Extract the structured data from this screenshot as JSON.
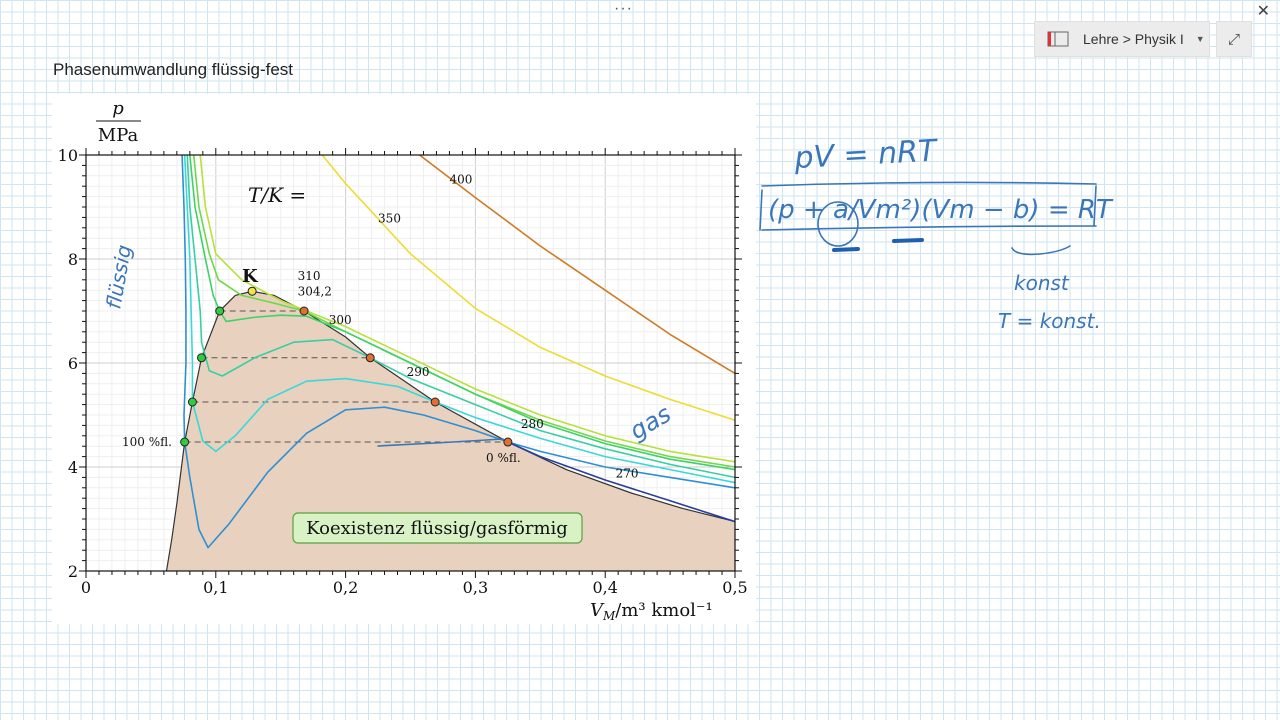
{
  "window": {
    "more_glyph": "···",
    "close_glyph": "✕"
  },
  "toolbar": {
    "breadcrumb": "Lehre > Physik I",
    "notebook_icon": "notebook-icon",
    "caret_glyph": "▼",
    "expand_glyph": "⤢"
  },
  "page": {
    "title": "Phasenumwandlung flüssig-fest"
  },
  "handwriting": {
    "ideal_gas": "pV = nRT",
    "van_der_waals": "(p + a/Vm²)(Vm − b) = RT",
    "liquid_label": "flüssig",
    "gas_label": "gas",
    "konst": "konst",
    "t_konst": "T = konst."
  },
  "chart_data": {
    "type": "line",
    "ylabel_num": "p",
    "ylabel_den": "MPa",
    "xlabel": "V",
    "xlabel_sub": "M",
    "xlabel_unit": "/m³ kmol⁻¹",
    "xlim": [
      0,
      0.5
    ],
    "ylim": [
      2,
      10
    ],
    "xticks": [
      "0",
      "0,1",
      "0,2",
      "0,3",
      "0,4",
      "0,5"
    ],
    "yticks": [
      "2",
      "4",
      "6",
      "8",
      "10"
    ],
    "legend_title": "T/K =",
    "critical_label": "K",
    "left_label": "100 %fl.",
    "right_label": "0 %fl.",
    "region_label": "Koexistenz flüssig/gasförmig",
    "colors": {
      "region": "#e8d2bf",
      "region_edge": "#333333",
      "box_fill": "#d8f2c6",
      "box_edge": "#5aa042",
      "liquid_pt": "#2ecc40",
      "gas_pt": "#e07030",
      "critical_pt": "#f3e347"
    },
    "critical_point": {
      "x": 0.128,
      "y": 7.38
    },
    "series": [
      {
        "name": "400",
        "color": "#d07a22",
        "points": [
          [
            0.257,
            10.0
          ],
          [
            0.3,
            9.18
          ],
          [
            0.35,
            8.25
          ],
          [
            0.4,
            7.4
          ],
          [
            0.45,
            6.55
          ],
          [
            0.5,
            5.8
          ]
        ]
      },
      {
        "name": "350",
        "color": "#eedc33",
        "points": [
          [
            0.182,
            10.0
          ],
          [
            0.2,
            9.45
          ],
          [
            0.25,
            8.1
          ],
          [
            0.3,
            7.05
          ],
          [
            0.35,
            6.3
          ],
          [
            0.4,
            5.75
          ],
          [
            0.45,
            5.3
          ],
          [
            0.5,
            4.9
          ]
        ]
      },
      {
        "name": "310",
        "color": "#b7e13a",
        "points": [
          [
            0.088,
            10.0
          ],
          [
            0.092,
            9.0
          ],
          [
            0.1,
            8.1
          ],
          [
            0.12,
            7.6
          ],
          [
            0.15,
            7.2
          ],
          [
            0.2,
            6.7
          ],
          [
            0.25,
            6.1
          ],
          [
            0.3,
            5.5
          ],
          [
            0.35,
            5.0
          ],
          [
            0.4,
            4.6
          ],
          [
            0.45,
            4.3
          ],
          [
            0.5,
            4.1
          ]
        ]
      },
      {
        "name": "304,2",
        "color": "#6fd84a",
        "points": [
          [
            0.083,
            10.0
          ],
          [
            0.087,
            9.0
          ],
          [
            0.095,
            8.1
          ],
          [
            0.102,
            7.6
          ],
          [
            0.12,
            7.3
          ],
          [
            0.145,
            7.15
          ],
          [
            0.168,
            7.0
          ],
          [
            0.2,
            6.6
          ],
          [
            0.25,
            6.0
          ],
          [
            0.3,
            5.4
          ],
          [
            0.35,
            4.9
          ],
          [
            0.4,
            4.5
          ],
          [
            0.45,
            4.2
          ],
          [
            0.5,
            4.0
          ]
        ]
      },
      {
        "name": "300",
        "color": "#3ed266",
        "points": [
          [
            0.08,
            10.0
          ],
          [
            0.084,
            9.0
          ],
          [
            0.092,
            8.0
          ],
          [
            0.098,
            7.3
          ],
          [
            0.103,
            7.0
          ],
          [
            0.108,
            6.8
          ],
          [
            0.13,
            6.88
          ],
          [
            0.15,
            6.92
          ],
          [
            0.17,
            6.9
          ],
          [
            0.2,
            6.6
          ],
          [
            0.25,
            6.0
          ],
          [
            0.3,
            5.4
          ],
          [
            0.35,
            4.85
          ],
          [
            0.4,
            4.45
          ],
          [
            0.45,
            4.15
          ],
          [
            0.5,
            3.95
          ]
        ]
      },
      {
        "name": "295",
        "color": "#3acda4",
        "points": [
          [
            0.078,
            10.0
          ],
          [
            0.08,
            9.0
          ],
          [
            0.084,
            8.0
          ],
          [
            0.088,
            7.0
          ],
          [
            0.089,
            6.4
          ],
          [
            0.095,
            5.85
          ],
          [
            0.105,
            5.75
          ],
          [
            0.13,
            6.1
          ],
          [
            0.16,
            6.4
          ],
          [
            0.19,
            6.45
          ],
          [
            0.219,
            6.1
          ],
          [
            0.25,
            5.7
          ],
          [
            0.3,
            5.2
          ],
          [
            0.35,
            4.7
          ],
          [
            0.4,
            4.35
          ],
          [
            0.45,
            4.05
          ],
          [
            0.5,
            3.8
          ]
        ]
      },
      {
        "name": "290",
        "color": "#3ad8d8",
        "points": [
          [
            0.076,
            10.0
          ],
          [
            0.078,
            9.0
          ],
          [
            0.08,
            8.0
          ],
          [
            0.081,
            7.0
          ],
          [
            0.082,
            6.0
          ],
          [
            0.082,
            5.25
          ],
          [
            0.09,
            4.5
          ],
          [
            0.1,
            4.3
          ],
          [
            0.115,
            4.6
          ],
          [
            0.14,
            5.3
          ],
          [
            0.17,
            5.65
          ],
          [
            0.2,
            5.7
          ],
          [
            0.24,
            5.55
          ],
          [
            0.269,
            5.25
          ],
          [
            0.3,
            4.95
          ],
          [
            0.35,
            4.55
          ],
          [
            0.4,
            4.2
          ],
          [
            0.45,
            3.95
          ],
          [
            0.5,
            3.7
          ]
        ]
      },
      {
        "name": "280",
        "color": "#2f8fd0",
        "points": [
          [
            0.074,
            10.0
          ],
          [
            0.0755,
            9.0
          ],
          [
            0.0765,
            8.0
          ],
          [
            0.077,
            7.0
          ],
          [
            0.077,
            6.0
          ],
          [
            0.0755,
            5.0
          ],
          [
            0.076,
            4.48
          ],
          [
            0.08,
            3.8
          ],
          [
            0.087,
            2.8
          ],
          [
            0.094,
            2.45
          ],
          [
            0.11,
            2.9
          ],
          [
            0.14,
            3.9
          ],
          [
            0.17,
            4.65
          ],
          [
            0.2,
            5.1
          ],
          [
            0.23,
            5.15
          ],
          [
            0.26,
            5.0
          ],
          [
            0.3,
            4.7
          ],
          [
            0.325,
            4.48
          ],
          [
            0.35,
            4.3
          ],
          [
            0.4,
            4.0
          ],
          [
            0.45,
            3.8
          ],
          [
            0.5,
            3.6
          ]
        ]
      },
      {
        "name": "270",
        "color": "#2a3f98",
        "points": [
          [
            0.325,
            4.48
          ],
          [
            0.35,
            4.2
          ],
          [
            0.4,
            3.75
          ],
          [
            0.45,
            3.35
          ],
          [
            0.5,
            2.95
          ]
        ]
      }
    ],
    "coexistence": [
      [
        0.062,
        2.0
      ],
      [
        0.066,
        2.6
      ],
      [
        0.07,
        3.3
      ],
      [
        0.076,
        4.48
      ],
      [
        0.082,
        5.25
      ],
      [
        0.089,
        6.1
      ],
      [
        0.103,
        7.0
      ],
      [
        0.115,
        7.3
      ],
      [
        0.128,
        7.38
      ],
      [
        0.145,
        7.3
      ],
      [
        0.168,
        7.0
      ],
      [
        0.2,
        6.5
      ],
      [
        0.219,
        6.1
      ],
      [
        0.269,
        5.25
      ],
      [
        0.325,
        4.48
      ],
      [
        0.37,
        3.95
      ],
      [
        0.42,
        3.5
      ],
      [
        0.46,
        3.2
      ],
      [
        0.5,
        2.95
      ]
    ],
    "tie_lines": [
      {
        "x1": 0.103,
        "x2": 0.168,
        "y": 7.0
      },
      {
        "x1": 0.089,
        "x2": 0.219,
        "y": 6.1
      },
      {
        "x1": 0.082,
        "x2": 0.269,
        "y": 5.25
      },
      {
        "x1": 0.076,
        "x2": 0.325,
        "y": 4.48
      }
    ],
    "series_labels": [
      {
        "text": "400",
        "x": 0.28,
        "y": 9.45
      },
      {
        "text": "350",
        "x": 0.225,
        "y": 8.7
      },
      {
        "text": "310",
        "x": 0.163,
        "y": 7.6
      },
      {
        "text": "304,2",
        "x": 0.163,
        "y": 7.3
      },
      {
        "text": "300",
        "x": 0.187,
        "y": 6.75
      },
      {
        "text": "290",
        "x": 0.247,
        "y": 5.75
      },
      {
        "text": "280",
        "x": 0.335,
        "y": 4.75
      },
      {
        "text": "270",
        "x": 0.408,
        "y": 3.8
      }
    ]
  }
}
